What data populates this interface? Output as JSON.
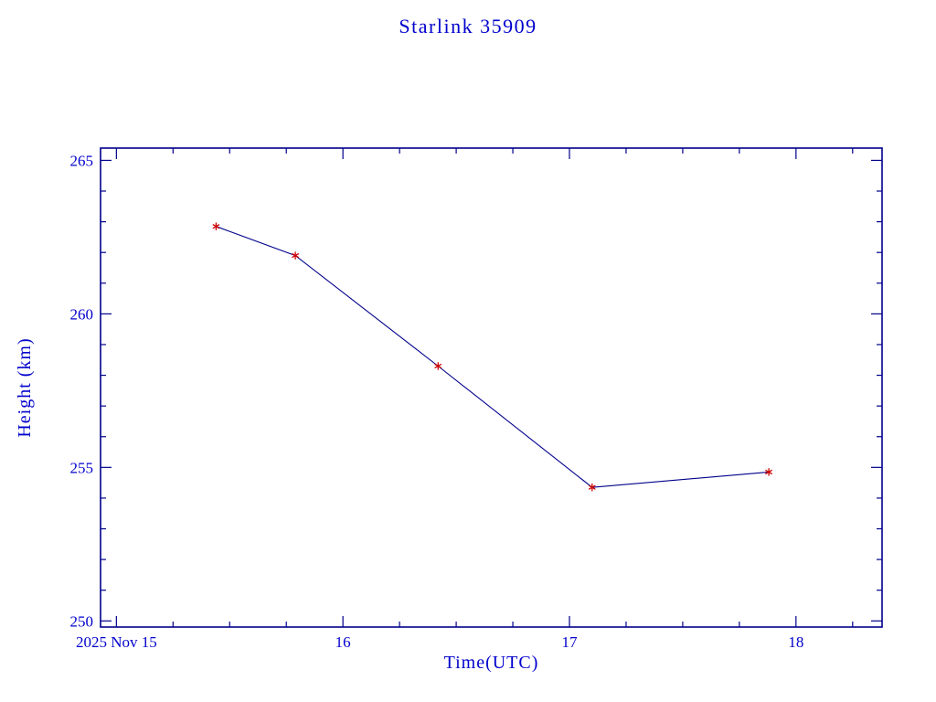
{
  "chart_data": {
    "type": "line",
    "title": "Starlink 35909",
    "xlabel": "Time(UTC)",
    "ylabel": "Height (km)",
    "x": [
      15.44,
      15.79,
      16.42,
      17.1,
      17.88
    ],
    "y": [
      262.85,
      261.9,
      258.3,
      254.35,
      254.85
    ],
    "xlim": [
      14.93,
      18.38
    ],
    "ylim": [
      249.8,
      265.4
    ],
    "xticks": [
      15,
      16,
      17,
      18
    ],
    "xtick_labels": [
      "2025 Nov 15",
      "16",
      "17",
      "18"
    ],
    "yticks": [
      250,
      255,
      260,
      265
    ],
    "ytick_labels": [
      "250",
      "255",
      "260",
      "265"
    ],
    "grid": false,
    "legend": false,
    "colors": {
      "text": "#0000cc",
      "axis": "#00008b",
      "line": "#00008b",
      "marker": "#cc0000",
      "background": "#ffffff"
    }
  }
}
